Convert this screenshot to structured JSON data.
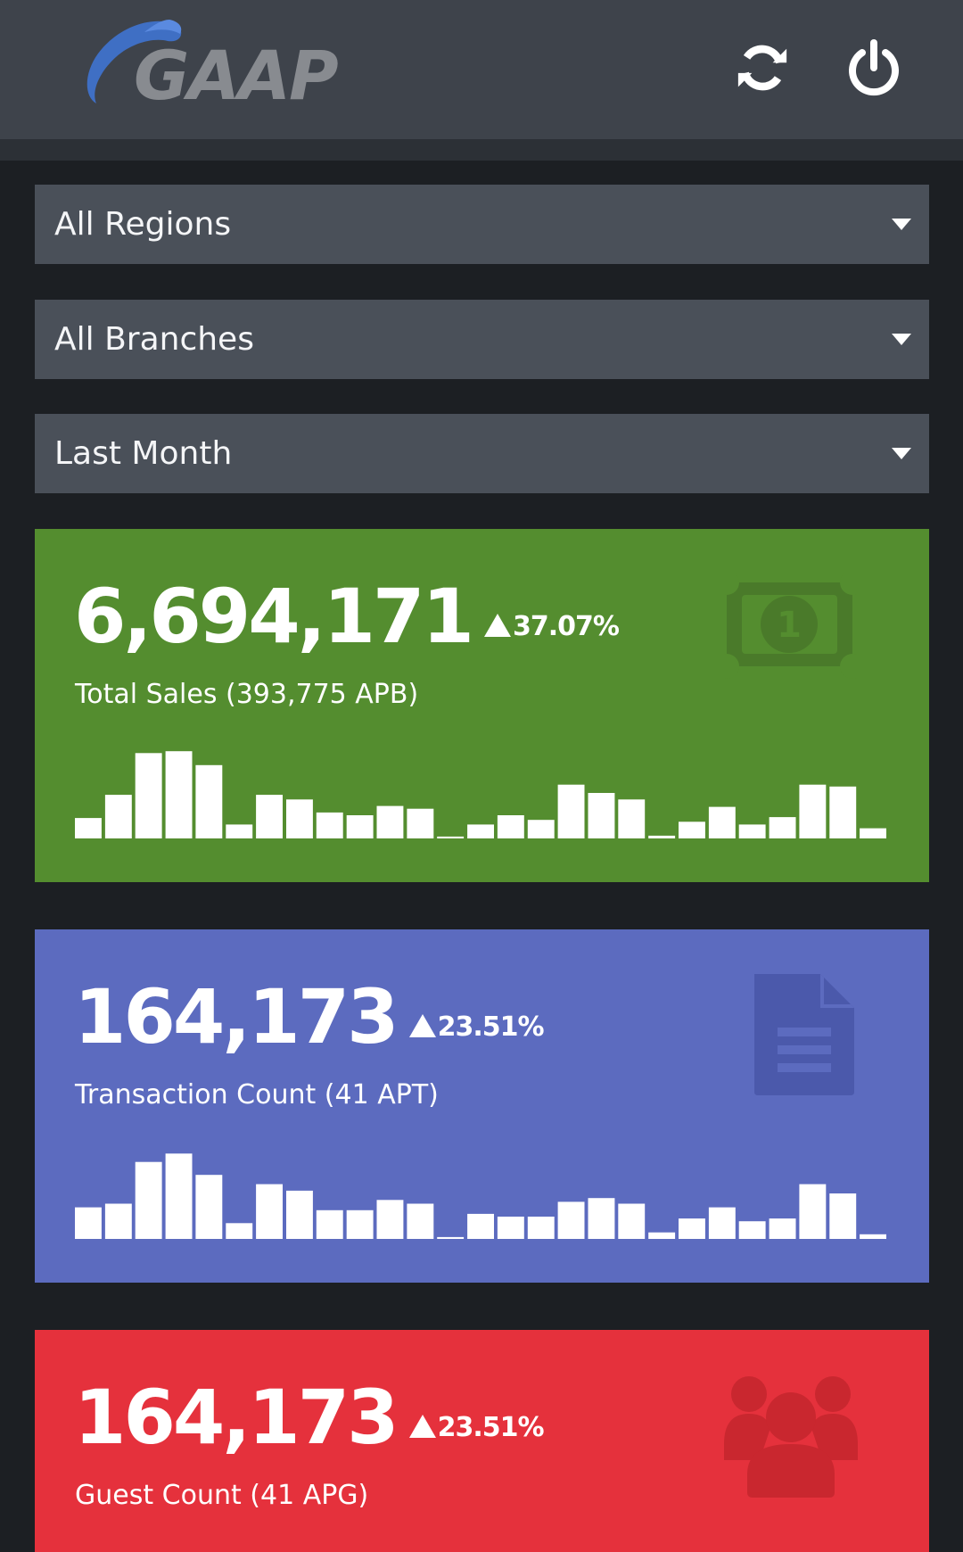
{
  "app": {
    "logo_text": "GAAP"
  },
  "header": {
    "refresh_icon": "refresh-icon",
    "power_icon": "power-icon"
  },
  "filters": {
    "region": "All Regions",
    "branch": "All Branches",
    "period": "Last Month"
  },
  "colors": {
    "sales": "#548d2f",
    "transactions": "#5c6bbf",
    "guests": "#e5313c",
    "header": "#3e434b"
  },
  "cards": [
    {
      "value": "6,694,171",
      "change": "37.07%",
      "label": "Total Sales (393,775 APB)",
      "icon": "money-bill-icon",
      "sparkline": [
        22,
        47,
        92,
        94,
        79,
        15,
        47,
        42,
        28,
        25,
        35,
        32,
        2,
        15,
        25,
        20,
        58,
        49,
        42,
        3,
        18,
        34,
        15,
        23,
        58,
        56,
        11
      ]
    },
    {
      "value": "164,173",
      "change": "23.51%",
      "label": "Transaction Count (41 APT)",
      "icon": "document-icon",
      "sparkline": [
        34,
        38,
        83,
        92,
        69,
        17,
        59,
        52,
        31,
        31,
        42,
        38,
        2,
        27,
        24,
        24,
        40,
        44,
        38,
        7,
        22,
        34,
        19,
        22,
        59,
        49,
        5
      ]
    },
    {
      "value": "164,173",
      "change": "23.51%",
      "label": "Guest Count (41 APG)",
      "icon": "users-icon"
    }
  ]
}
